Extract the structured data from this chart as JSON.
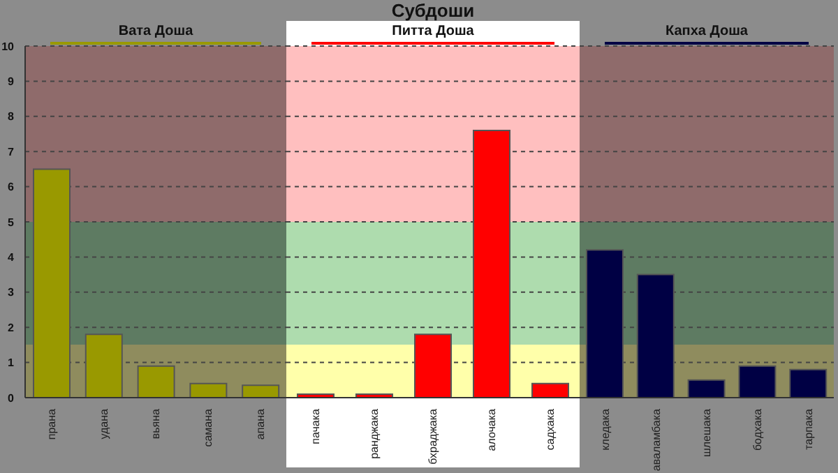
{
  "chart_data": [
    {
      "type": "bar",
      "title": "Вата Доша",
      "categories": [
        "прана",
        "удана",
        "вьяна",
        "самана",
        "апана"
      ],
      "values": [
        6.5,
        1.8,
        0.9,
        0.4,
        0.35
      ],
      "color": "#999900",
      "ylim": [
        0,
        10
      ],
      "yticks": [
        0,
        1,
        2,
        3,
        4,
        5,
        6,
        7,
        8,
        9,
        10
      ],
      "grid": "y",
      "bands": [
        {
          "axis": "y",
          "from": 0,
          "to": 1.5,
          "color": "#8f8c5e"
        },
        {
          "axis": "y",
          "from": 1.5,
          "to": 5,
          "color": "#5e7b62"
        },
        {
          "axis": "y",
          "from": 5,
          "to": 10,
          "color": "#8f6b6b"
        }
      ]
    },
    {
      "type": "bar",
      "title": "Субдоши",
      "subtitle": "Питта Доша",
      "categories": [
        "пачака",
        "ранджака",
        "бхраджака",
        "алочака",
        "садхака"
      ],
      "values": [
        0.1,
        0.1,
        1.8,
        7.6,
        0.4
      ],
      "color": "#ff0000",
      "ylim": [
        0,
        10
      ],
      "yticks": [
        0,
        1,
        2,
        3,
        4,
        5,
        6,
        7,
        8,
        9,
        10
      ],
      "grid": "y",
      "tick_labels": "x",
      "bands": [
        {
          "axis": "y",
          "from": 0,
          "to": 1.5,
          "color": "#ffffaa"
        },
        {
          "axis": "y",
          "from": 1.5,
          "to": 5,
          "color": "#aedcae"
        },
        {
          "axis": "y",
          "from": 5,
          "to": 10,
          "color": "#ffbfbf"
        }
      ]
    },
    {
      "type": "bar",
      "title": "Капха Доша",
      "categories": [
        "кледака",
        "аваламбака",
        "шлешака",
        "бодхака",
        "тарпака"
      ],
      "values": [
        4.2,
        3.5,
        0.5,
        0.9,
        0.8
      ],
      "color": "#000044",
      "ylim": [
        0,
        10
      ],
      "yticks": [
        0,
        1,
        2,
        3,
        4,
        5,
        6,
        7,
        8,
        9,
        10
      ],
      "grid": "y",
      "tick_labels": "x",
      "bands": [
        {
          "axis": "y",
          "from": 0,
          "to": 1.5,
          "color": "#8f8c5e"
        },
        {
          "axis": "y",
          "from": 1.5,
          "to": 5,
          "color": "#5e7b62"
        },
        {
          "axis": "y",
          "from": 5,
          "to": 10,
          "color": "#8f6b6b"
        }
      ]
    }
  ]
}
